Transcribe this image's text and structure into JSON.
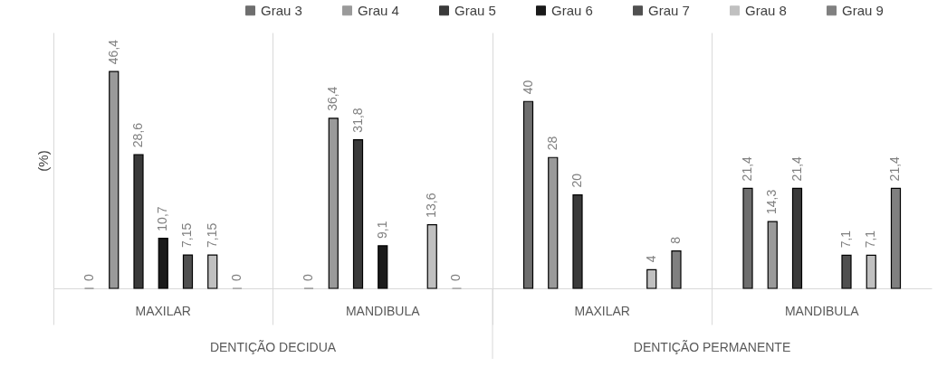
{
  "chart_data": {
    "type": "bar",
    "ylabel": "(%)",
    "categories": [
      "MAXILAR",
      "MANDIBULA",
      "MAXILAR",
      "MANDIBULA"
    ],
    "annotations": [
      "DENTIÇÃO DECIDUA",
      "DENTIÇÃO PERMANENTE"
    ],
    "series": [
      {
        "name": "Grau 3",
        "color": "#6e6e6e",
        "values": [
          0,
          0,
          40,
          21.4
        ],
        "value_labels": [
          "0",
          "0",
          "40",
          "21,4"
        ]
      },
      {
        "name": "Grau 4",
        "color": "#9a9a9a",
        "values": [
          46.4,
          36.4,
          28,
          14.3
        ],
        "value_labels": [
          "46,4",
          "36,4",
          "28",
          "14,3"
        ]
      },
      {
        "name": "Grau 5",
        "color": "#3a3a3a",
        "values": [
          28.6,
          31.8,
          20,
          21.4
        ],
        "value_labels": [
          "28,6",
          "31,8",
          "20",
          "21,4"
        ]
      },
      {
        "name": "Grau 6",
        "color": "#1a1a1a",
        "values": [
          10.7,
          9.1,
          null,
          null
        ],
        "value_labels": [
          "10,7",
          "9,1",
          null,
          null
        ]
      },
      {
        "name": "Grau 7",
        "color": "#505050",
        "values": [
          7.15,
          null,
          null,
          7.1
        ],
        "value_labels": [
          "7,15",
          null,
          null,
          "7,1"
        ]
      },
      {
        "name": "Grau 8",
        "color": "#c0c0c0",
        "values": [
          7.15,
          13.6,
          4,
          7.1
        ],
        "value_labels": [
          "7,15",
          "13,6",
          "4",
          "7,1"
        ]
      },
      {
        "name": "Grau 9",
        "color": "#808080",
        "values": [
          0,
          0,
          8,
          21.4
        ],
        "value_labels": [
          "0",
          "0",
          "8",
          "21,4"
        ]
      }
    ],
    "grid": "x",
    "legend": "top right"
  }
}
